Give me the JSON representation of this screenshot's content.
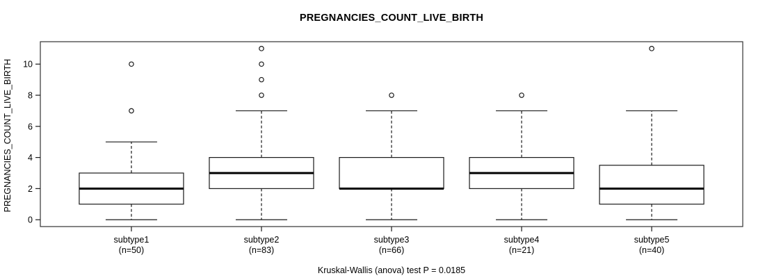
{
  "chart_data": {
    "type": "boxplot",
    "title": "PREGNANCIES_COUNT_LIVE_BIRTH",
    "ylabel": "PREGNANCIES_COUNT_LIVE_BIRTH",
    "footnote": "Kruskal-Wallis (anova) test P = 0.0185",
    "y_ticks": [
      0,
      2,
      4,
      6,
      8,
      10
    ],
    "ylim": [
      -0.44,
      11.44
    ],
    "xlim": [
      0.3,
      5.7
    ],
    "grid": false,
    "legend": "none",
    "frame_color": "#333333",
    "line_color": "#1a1a1a",
    "median_color": "#000000",
    "box_fill": "#ffffff",
    "groups": [
      {
        "label": "subtype1",
        "n_label": "(n=50)",
        "n": 50,
        "q1": 1,
        "median": 2,
        "q3": 3,
        "whisker_low": 0,
        "whisker_high": 5,
        "outliers": [
          7,
          10
        ]
      },
      {
        "label": "subtype2",
        "n_label": "(n=83)",
        "n": 83,
        "q1": 2,
        "median": 3,
        "q3": 4,
        "whisker_low": 0,
        "whisker_high": 7,
        "outliers": [
          8,
          9,
          10,
          11
        ]
      },
      {
        "label": "subtype3",
        "n_label": "(n=66)",
        "n": 66,
        "q1": 2,
        "median": 2,
        "q3": 4,
        "whisker_low": 0,
        "whisker_high": 7,
        "outliers": [
          8
        ]
      },
      {
        "label": "subtype4",
        "n_label": "(n=21)",
        "n": 21,
        "q1": 2,
        "median": 3,
        "q3": 4,
        "whisker_low": 0,
        "whisker_high": 7,
        "outliers": [
          8
        ]
      },
      {
        "label": "subtype5",
        "n_label": "(n=40)",
        "n": 40,
        "q1": 1,
        "median": 2,
        "q3": 3.5,
        "whisker_low": 0,
        "whisker_high": 7,
        "outliers": [
          11
        ]
      }
    ]
  }
}
